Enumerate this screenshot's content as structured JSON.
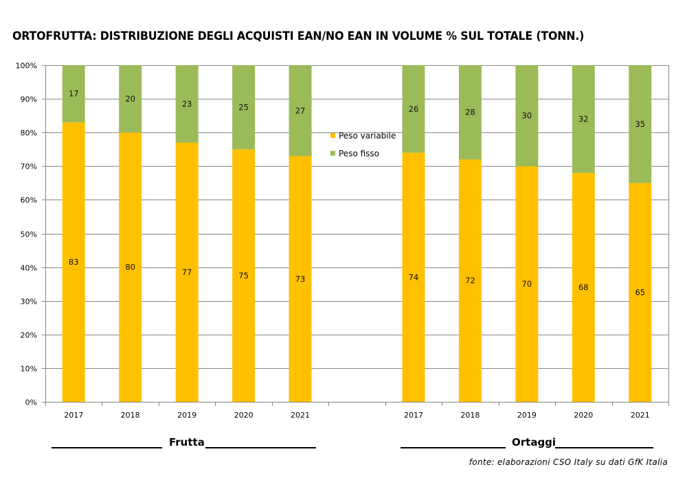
{
  "chart_data": {
    "type": "bar",
    "stacked": true,
    "percent_stacked": true,
    "title": "ORTOFRUTTA: DISTRIBUZIONE DEGLI ACQUISTI EAN/NO EAN IN VOLUME % SUL TOTALE (TONN.)",
    "xlabel": "",
    "ylabel": "",
    "ylim": [
      0,
      100
    ],
    "yticks": [
      "0%",
      "10%",
      "20%",
      "30%",
      "40%",
      "50%",
      "60%",
      "70%",
      "80%",
      "90%",
      "100%"
    ],
    "grid": true,
    "legend_position": "center",
    "categories": [
      "2017",
      "2018",
      "2019",
      "2020",
      "2021",
      "",
      "2017",
      "2018",
      "2019",
      "2020",
      "2021"
    ],
    "groups": [
      {
        "name": "Frutta",
        "categories": [
          "2017",
          "2018",
          "2019",
          "2020",
          "2021"
        ]
      },
      {
        "name": "Ortaggi",
        "categories": [
          "2017",
          "2018",
          "2019",
          "2020",
          "2021"
        ]
      }
    ],
    "series": [
      {
        "name": "Peso variabile",
        "color": "#FFC000",
        "values": [
          83,
          80,
          77,
          75,
          73,
          null,
          74,
          72,
          70,
          68,
          65
        ]
      },
      {
        "name": "Peso fisso",
        "color": "#9BBB59",
        "values": [
          17,
          20,
          23,
          25,
          27,
          null,
          26,
          28,
          30,
          32,
          35
        ]
      }
    ]
  },
  "labels": {
    "group_frutta": "Frutta",
    "group_ortaggi": "Ortaggi",
    "source": "fonte: elaborazioni CSO Italy su dati GfK Italia"
  }
}
